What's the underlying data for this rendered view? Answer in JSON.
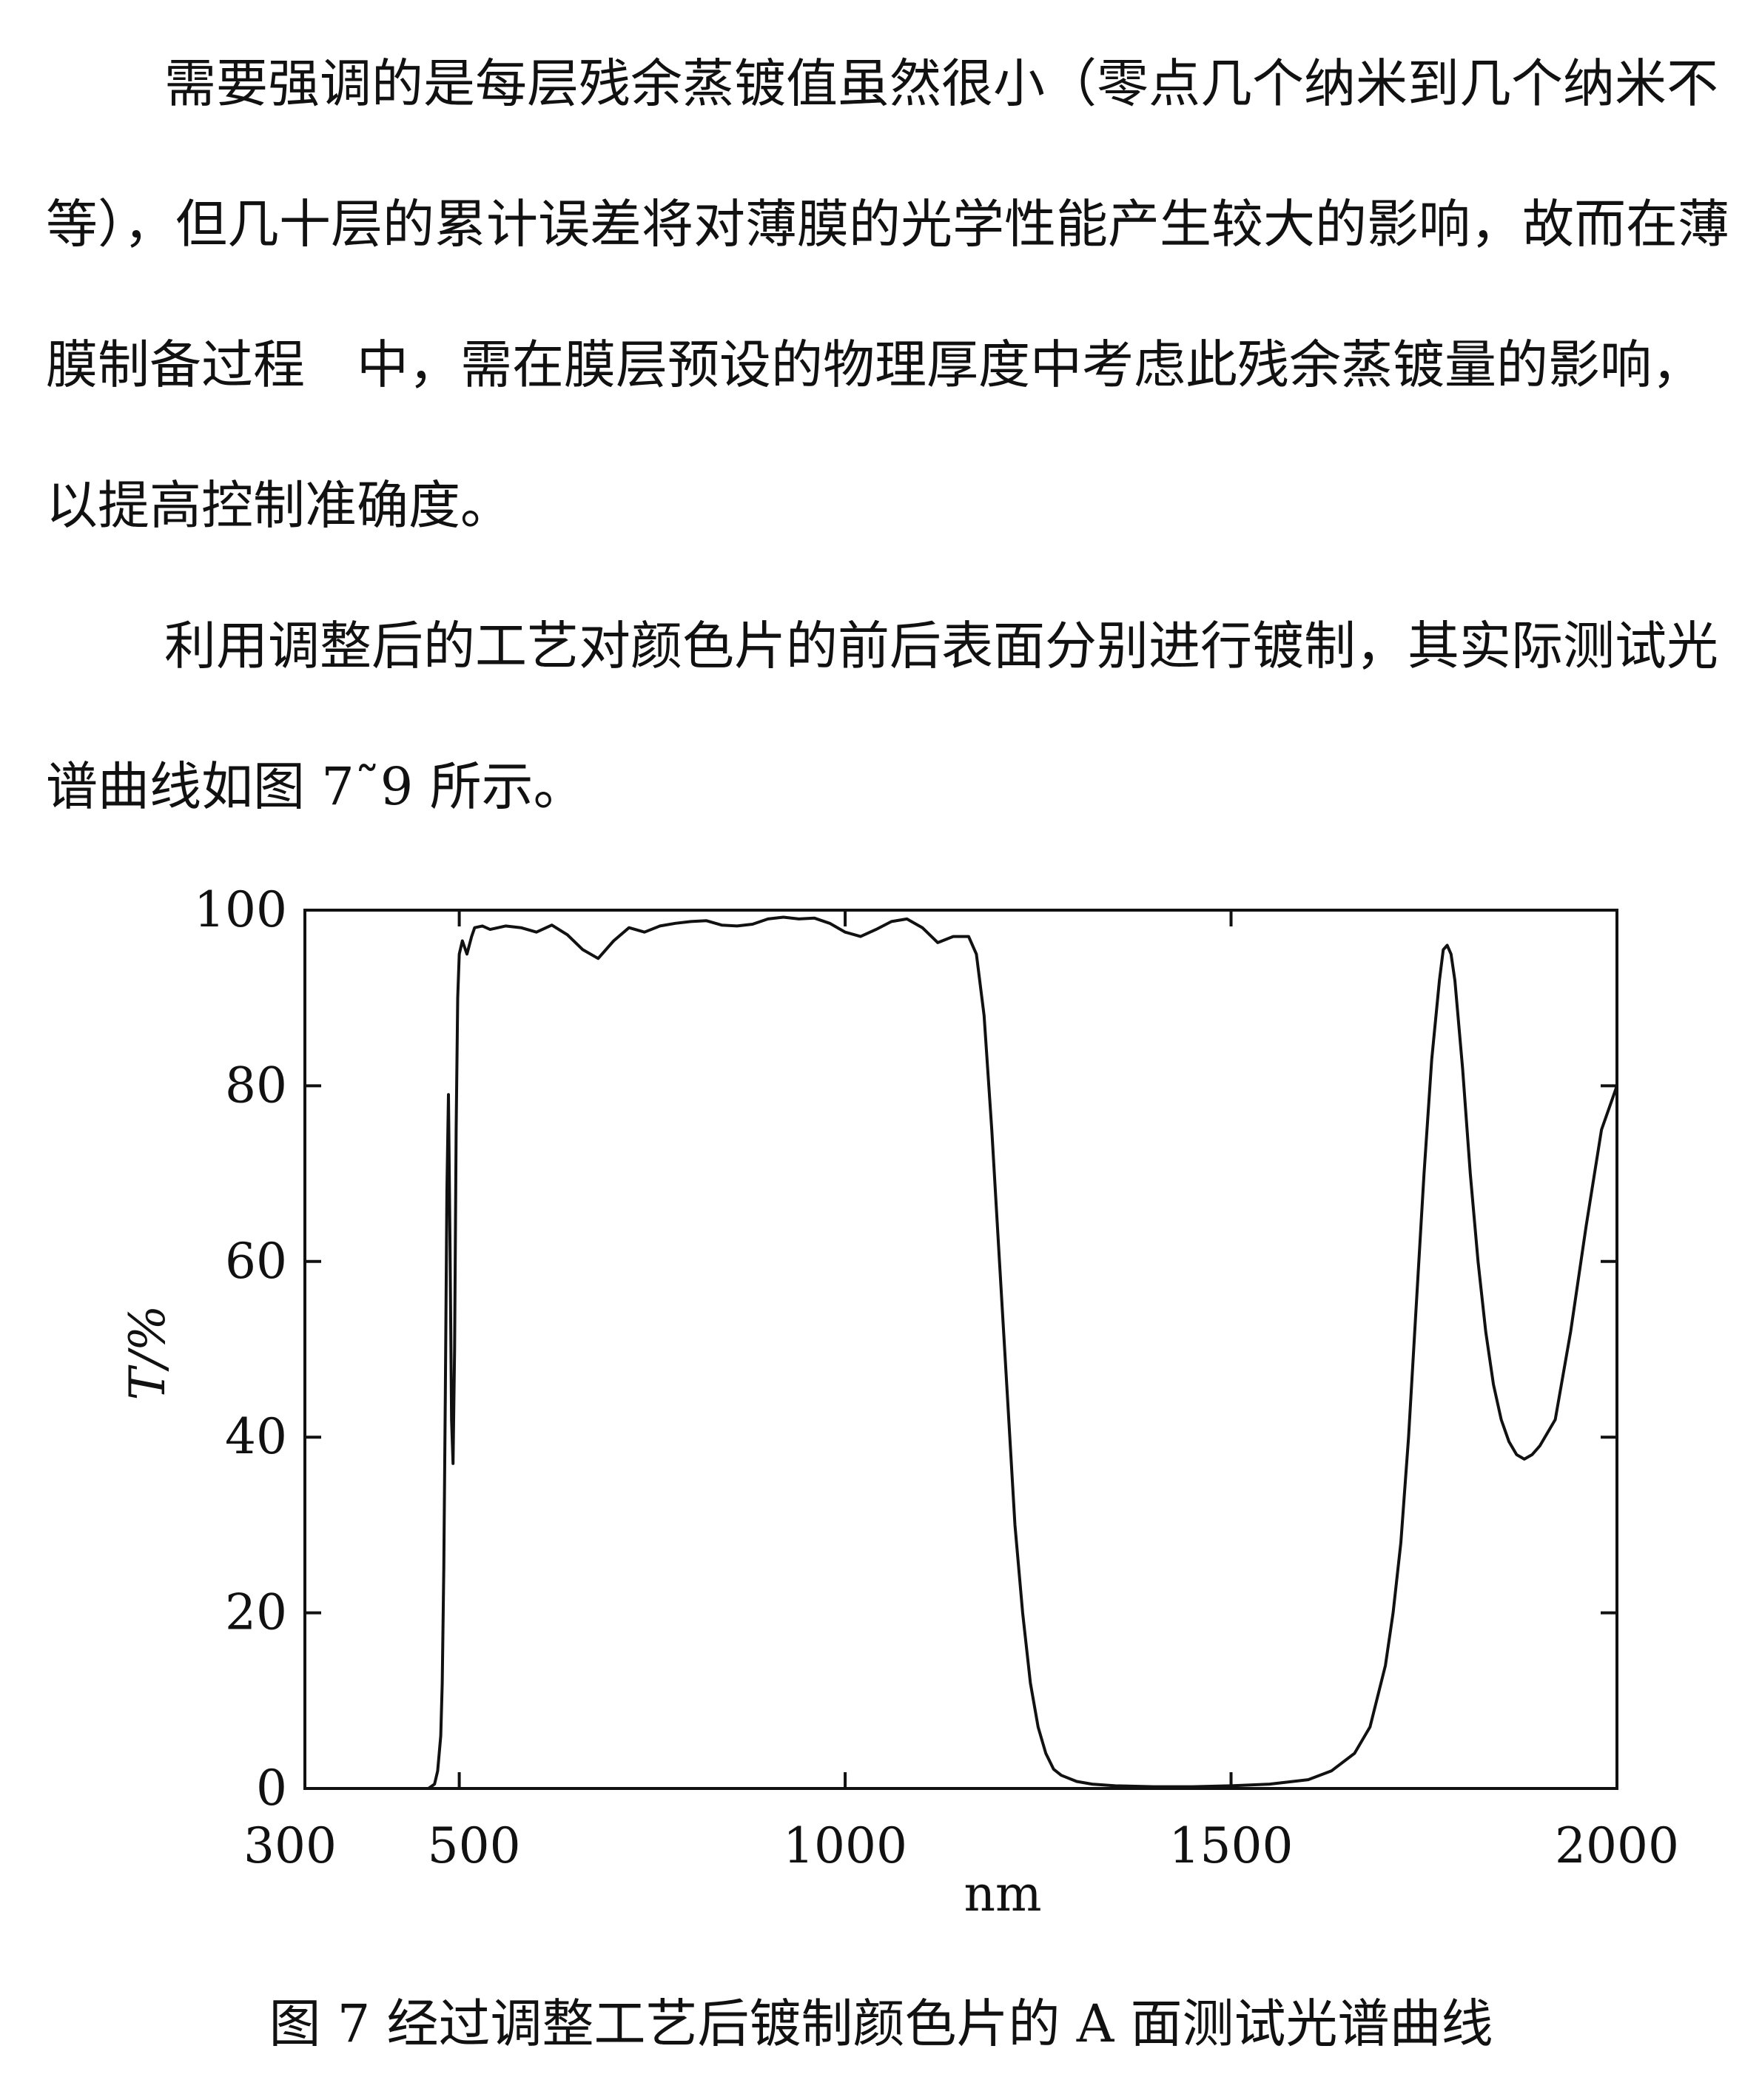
{
  "paragraphs": [
    "需要强调的是每层残余蒸镀值虽然很小（零点几个纳米到几个纳米不等），但几十层的累计误差将对薄膜的光学性能产生较大的影响，故而在薄膜制备过程　中，需在膜层预设的物理厚度中考虑此残余蒸镀量的影响，以提高控制准确度。",
    "利用调整后的工艺对颜色片的前后表面分别进行镀制，其实际测试光谱曲线如图 7˜9 所示。"
  ],
  "caption": "图 7  经过调整工艺后镀制颜色片的 A 面测试光谱曲线",
  "chart_data": {
    "type": "line",
    "title": "",
    "xlabel": "nm",
    "ylabel": "T/%",
    "xlim": [
      300,
      2000
    ],
    "ylim": [
      0,
      100
    ],
    "x_ticks": [
      300,
      500,
      1000,
      1500,
      2000
    ],
    "y_ticks": [
      0,
      20,
      40,
      60,
      80,
      100
    ],
    "grid": false,
    "line_color": "#111111",
    "series": [
      {
        "x": [
          300,
          440,
          460,
          468,
          472,
          476,
          478,
          480,
          482,
          484,
          486,
          488,
          490,
          492,
          494,
          496,
          498,
          500,
          504,
          510,
          516,
          520,
          530,
          540,
          560,
          580,
          600,
          620,
          640,
          660,
          680,
          700,
          720,
          740,
          760,
          780,
          800,
          820,
          840,
          860,
          880,
          900,
          920,
          940,
          960,
          980,
          1000,
          1020,
          1040,
          1060,
          1080,
          1100,
          1120,
          1140,
          1160,
          1170,
          1180,
          1190,
          1200,
          1210,
          1220,
          1230,
          1240,
          1250,
          1260,
          1270,
          1280,
          1300,
          1320,
          1350,
          1400,
          1450,
          1500,
          1550,
          1600,
          1630,
          1660,
          1680,
          1700,
          1710,
          1720,
          1730,
          1740,
          1750,
          1760,
          1770,
          1775,
          1780,
          1785,
          1790,
          1800,
          1810,
          1820,
          1830,
          1840,
          1850,
          1860,
          1870,
          1880,
          1890,
          1900,
          1920,
          1940,
          1960,
          1980,
          2000
        ],
        "y": [
          0,
          0,
          0,
          0.5,
          2,
          6,
          12,
          25,
          45,
          68,
          79,
          62,
          42,
          37,
          50,
          75,
          90,
          95,
          96.5,
          95,
          97,
          98,
          98.2,
          97.8,
          98.2,
          98,
          97.5,
          98.3,
          97.2,
          95.5,
          94.5,
          96.5,
          98,
          97.5,
          98.2,
          98.5,
          98.7,
          98.8,
          98.3,
          98.2,
          98.4,
          99,
          99.2,
          99,
          99.1,
          98.5,
          97.5,
          97,
          97.8,
          98.7,
          99,
          98,
          96.3,
          97,
          97,
          95,
          88,
          75,
          60,
          45,
          30,
          20,
          12,
          7,
          4,
          2.2,
          1.5,
          0.8,
          0.5,
          0.3,
          0.2,
          0.2,
          0.3,
          0.5,
          1,
          2,
          4,
          7,
          14,
          20,
          28,
          40,
          55,
          70,
          83,
          92,
          95.5,
          96,
          95,
          92,
          82,
          70,
          60,
          52,
          46,
          42,
          39.5,
          38,
          37.5,
          38,
          39,
          42,
          52,
          64,
          75,
          80
        ]
      }
    ]
  }
}
